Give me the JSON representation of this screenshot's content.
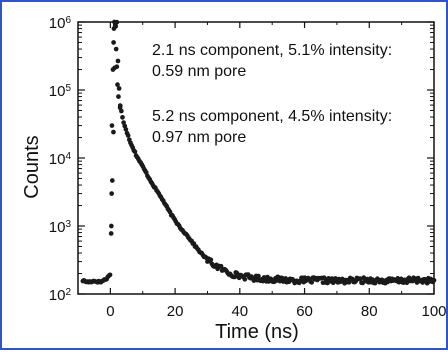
{
  "chart_data": {
    "type": "scatter",
    "title": "",
    "xlabel": "Time (ns)",
    "ylabel": "Counts",
    "xlim": [
      -10,
      100
    ],
    "ylim": [
      100,
      1000000
    ],
    "y_scale": "log",
    "x_ticks": [
      0,
      20,
      40,
      60,
      80,
      100
    ],
    "y_ticks": [
      {
        "value": 100,
        "base": "10",
        "exp": "2"
      },
      {
        "value": 1000,
        "base": "10",
        "exp": "3"
      },
      {
        "value": 10000,
        "base": "10",
        "exp": "4"
      },
      {
        "value": 100000,
        "base": "10",
        "exp": "5"
      },
      {
        "value": 1000000,
        "base": "10",
        "exp": "6"
      }
    ],
    "annotations": [
      "2.1 ns component, 5.1% intensity:",
      "0.59 nm pore",
      "5.2 ns component, 4.5% intensity:",
      "0.97 nm  pore"
    ],
    "series": [
      {
        "x": [
          -9,
          -7,
          -5,
          -3,
          -2,
          -1,
          0,
          0.3,
          0.5,
          1,
          1.5,
          2,
          2.5,
          3,
          4,
          5,
          6,
          7,
          8,
          9,
          10,
          12,
          14,
          16,
          18,
          20,
          22,
          24,
          26,
          28,
          30,
          32,
          34,
          36,
          38,
          40,
          45,
          50,
          55,
          60,
          65,
          70,
          75,
          80,
          85,
          90,
          95,
          100
        ],
        "y": [
          160,
          150,
          155,
          150,
          160,
          170,
          200,
          1000,
          3000,
          30000,
          800000,
          1000000,
          150000,
          60000,
          35000,
          25000,
          18000,
          14000,
          11000,
          9000,
          7500,
          5000,
          3500,
          2500,
          1700,
          1200,
          900,
          700,
          520,
          400,
          320,
          270,
          240,
          210,
          195,
          185,
          170,
          165,
          160,
          158,
          160,
          155,
          158,
          160,
          155,
          157,
          160,
          156
        ]
      }
    ],
    "marker_color": "#1a1a1a",
    "grid": false
  }
}
